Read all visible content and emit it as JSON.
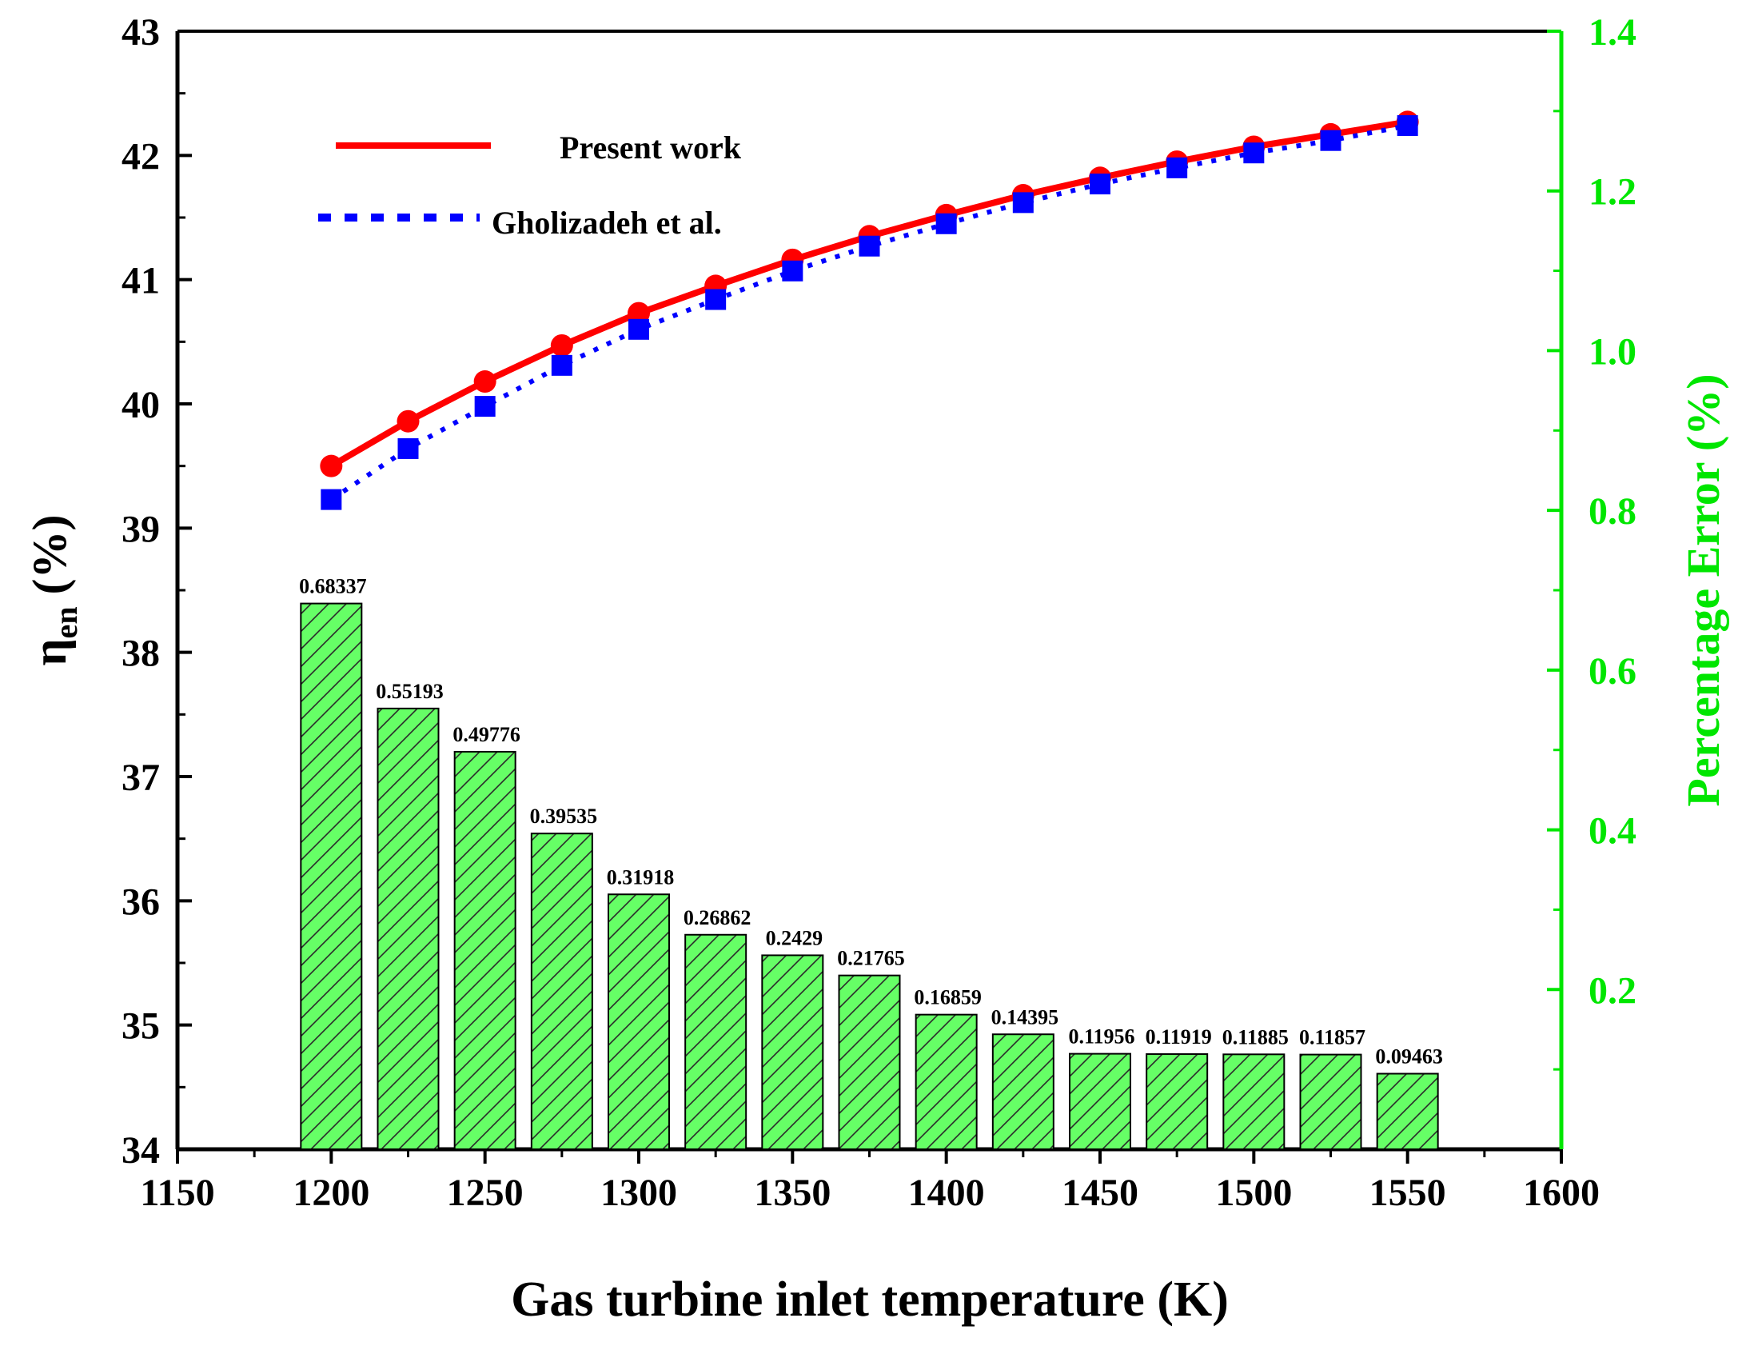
{
  "chart_data": {
    "type": "bar+line",
    "x_axis": {
      "label": "Gas turbine inlet temperature (K)",
      "range": [
        1150,
        1600
      ],
      "ticks": [
        1150,
        1200,
        1250,
        1300,
        1350,
        1400,
        1450,
        1500,
        1550,
        1600
      ]
    },
    "y_left": {
      "label_main": "η",
      "label_sub": "en",
      "label_unit": " (%)",
      "range": [
        34,
        43
      ],
      "ticks": [
        34,
        35,
        36,
        37,
        38,
        39,
        40,
        41,
        42,
        43
      ]
    },
    "y_right": {
      "label": "Percentage Error (%)",
      "range": [
        0,
        1.4
      ],
      "ticks": [
        "0.2",
        "0.4",
        "0.6",
        "0.8",
        "1.0",
        "1.2",
        "1.4"
      ],
      "color": "#00e600"
    },
    "x": [
      1200,
      1225,
      1250,
      1275,
      1300,
      1325,
      1350,
      1375,
      1400,
      1425,
      1450,
      1475,
      1500,
      1525,
      1550
    ],
    "series": [
      {
        "name": "Present work",
        "axis": "left",
        "style": "solid-line-circles",
        "color": "#ff0000",
        "values": [
          39.5,
          39.86,
          40.18,
          40.47,
          40.73,
          40.95,
          41.16,
          41.35,
          41.52,
          41.68,
          41.82,
          41.95,
          42.07,
          42.17,
          42.27
        ]
      },
      {
        "name": "Gholizadeh et al.",
        "axis": "left",
        "style": "dotted-line-squares",
        "color": "#0000ff",
        "values": [
          39.23,
          39.64,
          39.98,
          40.31,
          40.6,
          40.84,
          41.07,
          41.27,
          41.45,
          41.62,
          41.77,
          41.9,
          42.02,
          42.12,
          42.24
        ]
      }
    ],
    "bars": {
      "name": "Percentage Error",
      "axis": "right",
      "fill": "#66ff66",
      "hatch": "#2a2a2a",
      "values": [
        0.68337,
        0.55193,
        0.49776,
        0.39535,
        0.31918,
        0.26862,
        0.2429,
        0.21765,
        0.16859,
        0.14395,
        0.11956,
        0.11919,
        0.11885,
        0.11857,
        0.09463
      ],
      "labels": [
        "0.68337",
        "0.55193",
        "0.49776",
        "0.39535",
        "0.31918",
        "0.26862",
        "0.2429",
        "0.21765",
        "0.16859",
        "0.14395",
        "0.11956",
        "0.11919",
        "0.11885",
        "0.11857",
        "0.09463"
      ]
    },
    "legend": {
      "position": "top-left",
      "entries": [
        "Present work",
        "Gholizadeh et al."
      ]
    }
  }
}
